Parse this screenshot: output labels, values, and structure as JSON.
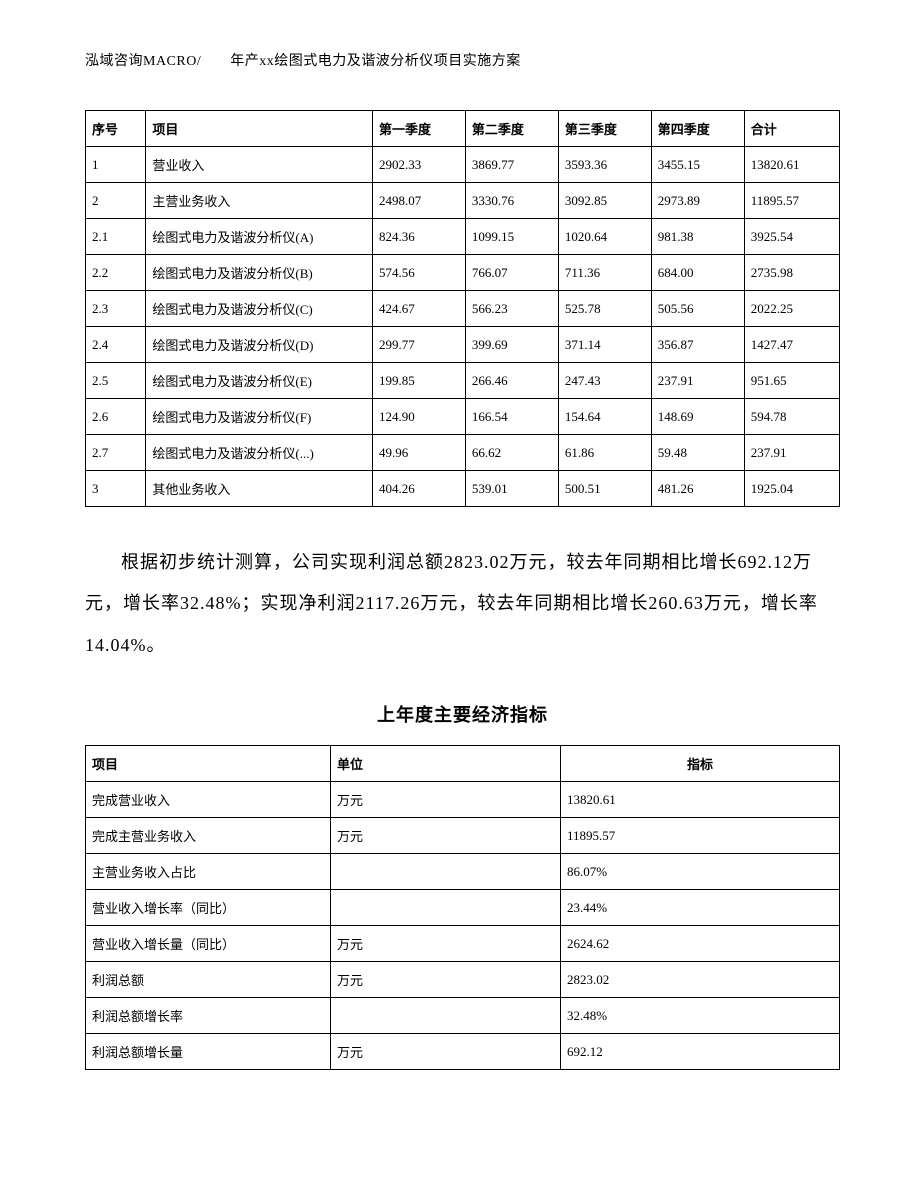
{
  "header": "泓域咨询MACRO/　　年产xx绘图式电力及谐波分析仪项目实施方案",
  "table1": {
    "headers": {
      "seq": "序号",
      "item": "项目",
      "q1": "第一季度",
      "q2": "第二季度",
      "q3": "第三季度",
      "q4": "第四季度",
      "total": "合计"
    },
    "rows": [
      {
        "seq": "1",
        "item": "营业收入",
        "q1": "2902.33",
        "q2": "3869.77",
        "q3": "3593.36",
        "q4": "3455.15",
        "total": "13820.61"
      },
      {
        "seq": "2",
        "item": "主营业务收入",
        "q1": "2498.07",
        "q2": "3330.76",
        "q3": "3092.85",
        "q4": "2973.89",
        "total": "11895.57"
      },
      {
        "seq": "2.1",
        "item": "绘图式电力及谐波分析仪(A)",
        "q1": "824.36",
        "q2": "1099.15",
        "q3": "1020.64",
        "q4": "981.38",
        "total": "3925.54"
      },
      {
        "seq": "2.2",
        "item": "绘图式电力及谐波分析仪(B)",
        "q1": "574.56",
        "q2": "766.07",
        "q3": "711.36",
        "q4": "684.00",
        "total": "2735.98"
      },
      {
        "seq": "2.3",
        "item": "绘图式电力及谐波分析仪(C)",
        "q1": "424.67",
        "q2": "566.23",
        "q3": "525.78",
        "q4": "505.56",
        "total": "2022.25"
      },
      {
        "seq": "2.4",
        "item": "绘图式电力及谐波分析仪(D)",
        "q1": "299.77",
        "q2": "399.69",
        "q3": "371.14",
        "q4": "356.87",
        "total": "1427.47"
      },
      {
        "seq": "2.5",
        "item": "绘图式电力及谐波分析仪(E)",
        "q1": "199.85",
        "q2": "266.46",
        "q3": "247.43",
        "q4": "237.91",
        "total": "951.65"
      },
      {
        "seq": "2.6",
        "item": "绘图式电力及谐波分析仪(F)",
        "q1": "124.90",
        "q2": "166.54",
        "q3": "154.64",
        "q4": "148.69",
        "total": "594.78"
      },
      {
        "seq": "2.7",
        "item": "绘图式电力及谐波分析仪(...)",
        "q1": "49.96",
        "q2": "66.62",
        "q3": "61.86",
        "q4": "59.48",
        "total": "237.91"
      },
      {
        "seq": "3",
        "item": "其他业务收入",
        "q1": "404.26",
        "q2": "539.01",
        "q3": "500.51",
        "q4": "481.26",
        "total": "1925.04"
      }
    ]
  },
  "paragraph": "根据初步统计测算，公司实现利润总额2823.02万元，较去年同期相比增长692.12万元，增长率32.48%；实现净利润2117.26万元，较去年同期相比增长260.63万元，增长率14.04%。",
  "section_title": "上年度主要经济指标",
  "table2": {
    "headers": {
      "proj": "项目",
      "unit": "单位",
      "metric": "指标"
    },
    "rows": [
      {
        "proj": "完成营业收入",
        "unit": "万元",
        "metric": "13820.61"
      },
      {
        "proj": "完成主营业务收入",
        "unit": "万元",
        "metric": "11895.57"
      },
      {
        "proj": "主营业务收入占比",
        "unit": "",
        "metric": "86.07%"
      },
      {
        "proj": "营业收入增长率（同比）",
        "unit": "",
        "metric": "23.44%"
      },
      {
        "proj": "营业收入增长量（同比）",
        "unit": "万元",
        "metric": "2624.62"
      },
      {
        "proj": "利润总额",
        "unit": "万元",
        "metric": "2823.02"
      },
      {
        "proj": "利润总额增长率",
        "unit": "",
        "metric": "32.48%"
      },
      {
        "proj": "利润总额增长量",
        "unit": "万元",
        "metric": "692.12"
      }
    ]
  }
}
